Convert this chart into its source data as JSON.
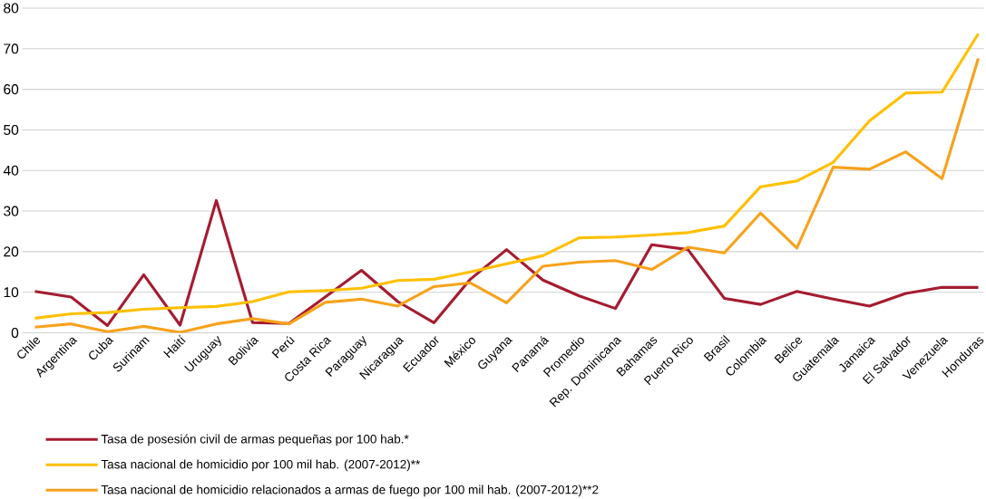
{
  "chart_data": {
    "type": "line",
    "categories": [
      "Chile",
      "Argentina",
      "Cuba",
      "Surinam",
      "Haití",
      "Uruguay",
      "Bolivia",
      "Perú",
      "Costa Rica",
      "Paraguay",
      "Nicaragua",
      "Ecuador",
      "México",
      "Guyana",
      "Panamá",
      "Promedio",
      "Rep. Dominicana",
      "Bahamas",
      "Puerto Rico",
      "Brasil",
      "Colombia",
      "Belice",
      "Guatemala",
      "Jamaica",
      "El Salvador",
      "Venezuela",
      "Honduras"
    ],
    "series": [
      {
        "name": "Tasa de posesión civil de armas pequeñas por 100 hab.*",
        "color": "#a51c30",
        "values": [
          10.2,
          8.8,
          1.8,
          14.3,
          1.9,
          32.6,
          2.5,
          2.3,
          8.8,
          15.4,
          7.7,
          2.5,
          13.2,
          20.5,
          13.0,
          9.1,
          6.0,
          21.7,
          20.5,
          8.5,
          7.0,
          10.2,
          8.3,
          6.6,
          9.7,
          11.2,
          11.2
        ]
      },
      {
        "name": "Tasa nacional de homicidio por 100 mil hab. (2007-2012)**",
        "color": "#ffc000",
        "values": [
          3.6,
          4.7,
          5.0,
          5.8,
          6.2,
          6.5,
          7.7,
          10.1,
          10.4,
          11.0,
          12.9,
          13.2,
          15.0,
          17.0,
          19.0,
          23.4,
          23.6,
          24.1,
          24.7,
          26.3,
          36.0,
          37.4,
          42.0,
          52.2,
          59.1,
          59.3,
          73.7
        ]
      },
      {
        "name": "Tasa nacional de homicidio relacionados a armas de fuego por 100 mil hab. (2007-2012)**2",
        "color": "#f7a21c",
        "values": [
          1.4,
          2.2,
          0.3,
          1.6,
          0.1,
          2.2,
          3.5,
          2.2,
          7.5,
          8.3,
          6.6,
          11.4,
          12.3,
          7.4,
          16.4,
          17.4,
          17.8,
          15.6,
          21.1,
          19.7,
          29.5,
          20.9,
          40.8,
          40.3,
          44.6,
          38.0,
          67.6
        ]
      }
    ],
    "ylim": [
      0,
      80
    ],
    "yticks": [
      0,
      10,
      20,
      30,
      40,
      50,
      60,
      70,
      80
    ],
    "grid": "y",
    "legend": "bottom",
    "marker": "none",
    "line_style": "solid"
  }
}
